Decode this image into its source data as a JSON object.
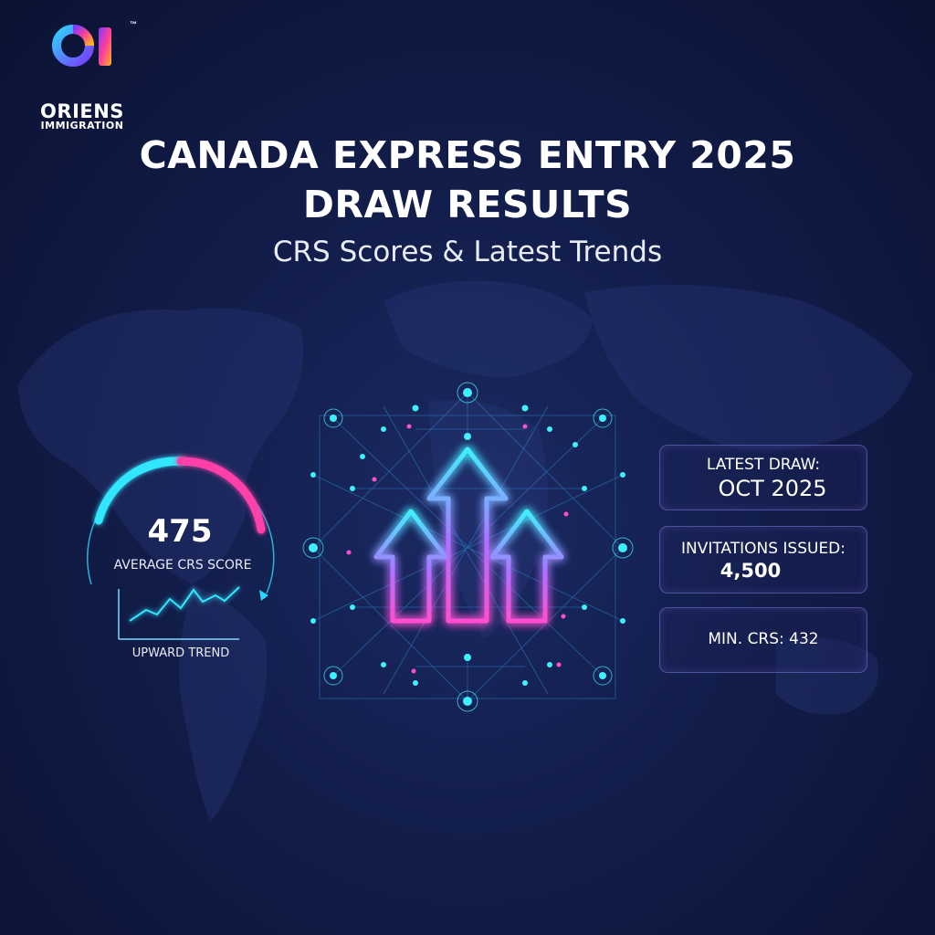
{
  "logo": {
    "mark": "OI",
    "trademark": "™",
    "name": "ORIENS",
    "subtitle": "IMMIGRATION"
  },
  "header": {
    "title_line1": "CANADA EXPRESS ENTRY 2025",
    "title_line2": "DRAW RESULTS",
    "subtitle": "CRS Scores & Latest Trends"
  },
  "gauge": {
    "value": "475",
    "label": "AVERAGE CRS SCORE",
    "trend_label": "UPWARD TREND",
    "colors": {
      "cyan": "#33e6ff",
      "pink": "#ff3fa8"
    }
  },
  "stats": {
    "latest_draw_label": "LATEST DRAW:",
    "latest_draw_value": "OCT 2025",
    "invitations_label": "INVITATIONS ISSUED:",
    "invitations_value": "4,500",
    "min_crs": "MIN. CRS: 432"
  },
  "graphic": {
    "icon": "three-up-arrows-network-icon",
    "colors": {
      "cyan": "#3ff0ff",
      "pink": "#ff4fd0",
      "background": "#121d4a"
    }
  }
}
